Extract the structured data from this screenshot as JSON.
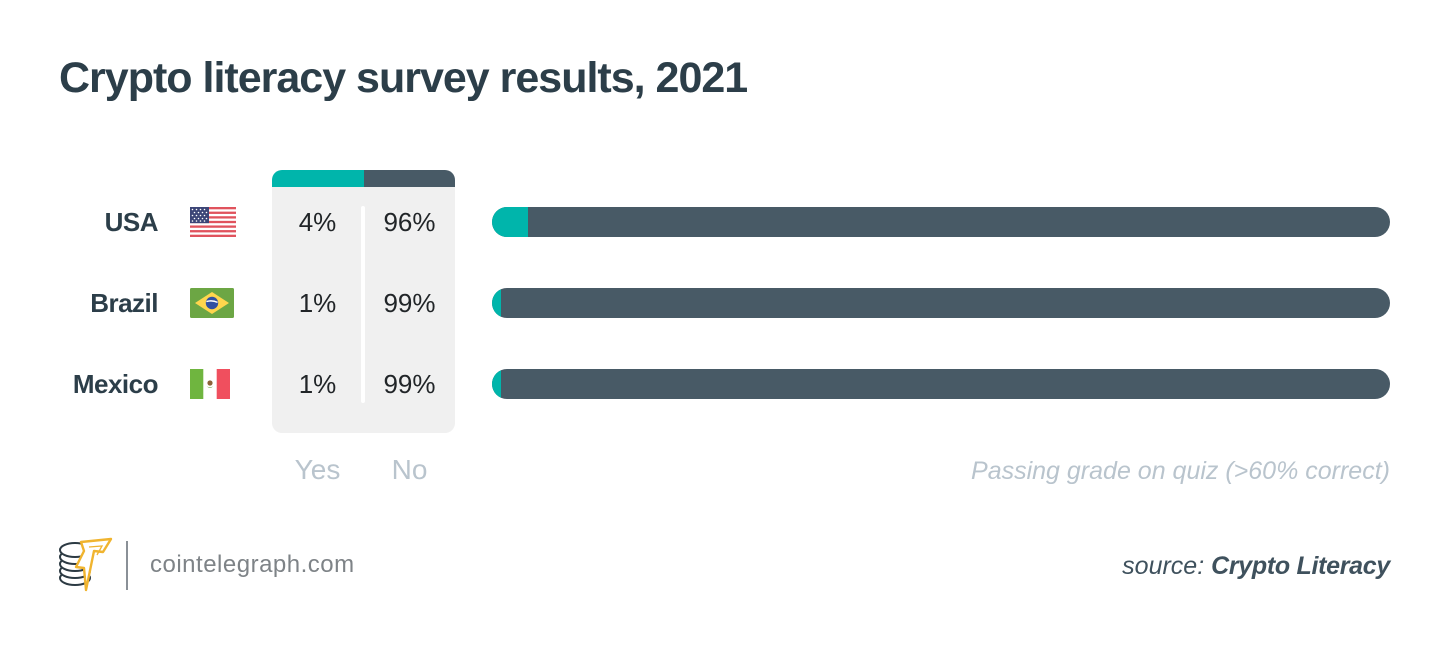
{
  "title": "Crypto literacy survey results, 2021",
  "table": {
    "columns": [
      "Yes",
      "No"
    ],
    "rows": [
      {
        "country": "USA",
        "flag": "usa-flag",
        "yes": "4%",
        "no": "96%"
      },
      {
        "country": "Brazil",
        "flag": "brazil-flag",
        "yes": "1%",
        "no": "99%"
      },
      {
        "country": "Mexico",
        "flag": "mexico-flag",
        "yes": "1%",
        "no": "99%"
      }
    ]
  },
  "note": "Passing grade on quiz (>60% correct)",
  "footer": {
    "site": "cointelegraph.com",
    "source_label": "source:",
    "source_name": "Crypto Literacy"
  },
  "colors": {
    "accent_teal": "#00B5AB",
    "slate": "#485A66",
    "title_text": "#2C3E49",
    "muted_label": "#B9C4CD",
    "panel_bg": "#F0F0F0",
    "logo_gold": "#F0B42F"
  },
  "chart_data": {
    "type": "bar",
    "stacked": true,
    "orientation": "horizontal",
    "title": "Crypto literacy survey results, 2021",
    "categories": [
      "USA",
      "Brazil",
      "Mexico"
    ],
    "series": [
      {
        "name": "Yes",
        "color": "#00B5AB",
        "values": [
          4,
          1,
          1
        ]
      },
      {
        "name": "No",
        "color": "#485A66",
        "values": [
          96,
          99,
          99
        ]
      }
    ],
    "unit": "%",
    "xlim": [
      0,
      100
    ],
    "annotation": "Passing grade on quiz (>60% correct)",
    "legend_position": "table-left",
    "grid": false
  }
}
